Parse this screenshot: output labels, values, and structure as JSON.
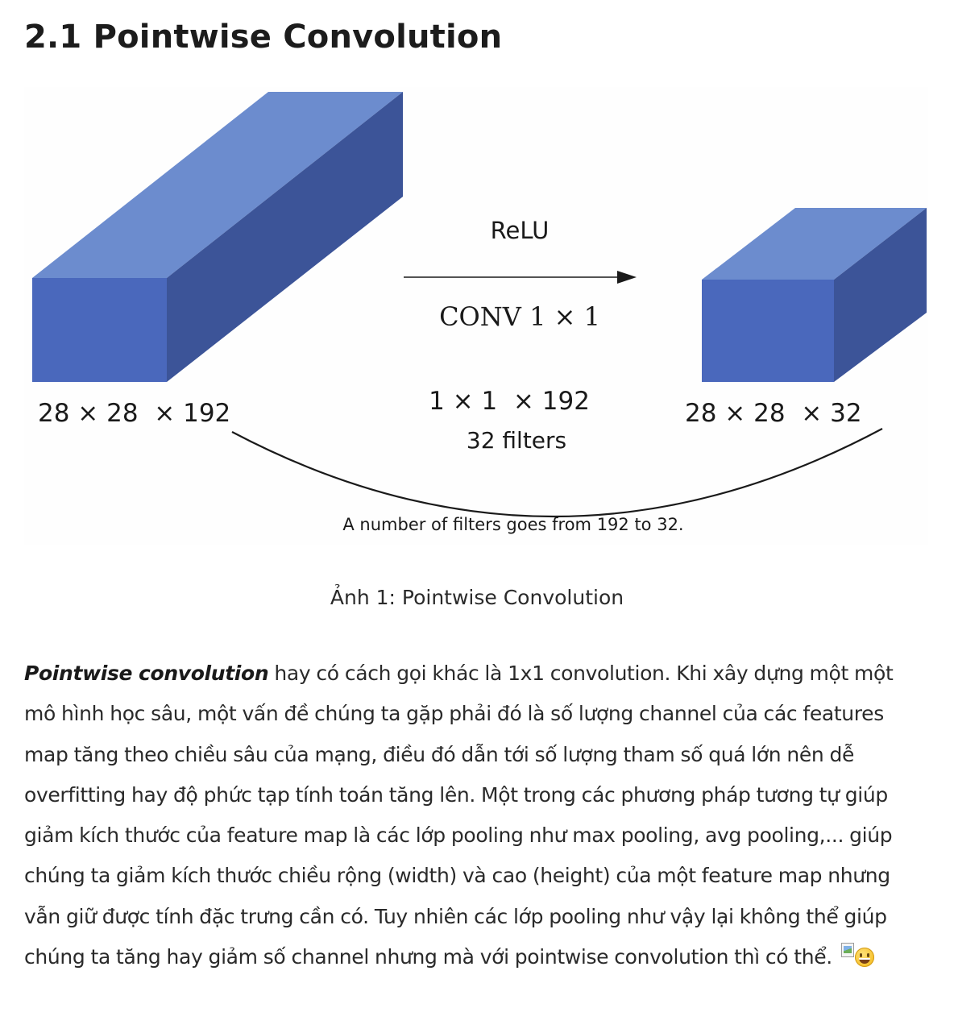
{
  "article": {
    "heading": "2.1 Pointwise Convolution",
    "figure": {
      "diagram": {
        "activation_label": "ReLU",
        "conv_label": "CONV 1 × 1",
        "filter_size_label": "1 × 1  × 192",
        "filter_count_label": "32 filters",
        "input_shape_label": "28 × 28  × 192",
        "output_shape_label": "28 × 28  × 32",
        "note": "A number of filters goes from 192 to 32.",
        "colors": {
          "cube_front": "#4a68bc",
          "cube_top": "#6c8cce",
          "cube_side": "#3c5498",
          "line": "#1a1a1a"
        }
      },
      "caption": "Ảnh 1: Pointwise Convolution"
    },
    "paragraph": {
      "term": "Pointwise convolution",
      "text": " hay có cách gọi khác là 1x1 convolution. Khi xây dựng một một mô hình học sâu, một vấn đề chúng ta gặp phải đó là số lượng channel của các features map tăng theo chiều sâu của mạng, điều đó dẫn tới số lượng tham số quá lớn nên dễ overfitting hay độ phức tạp tính toán tăng lên. Một trong các phương pháp tương tự giúp giảm kích thước của feature map là các lớp pooling như max pooling, avg pooling,... giúp chúng ta giảm kích thước chiều rộng (width) và cao (height) của một feature map nhưng vẫn giữ được tính đặc trưng cần có. Tuy nhiên các lớp pooling như vậy lại không thể giúp chúng ta tăng hay giảm số channel nhưng mà với pointwise convolution thì có thể.",
      "inline_image_icon": "broken-image-icon",
      "emoji_icon": "grinning-face-emoji-icon"
    }
  }
}
